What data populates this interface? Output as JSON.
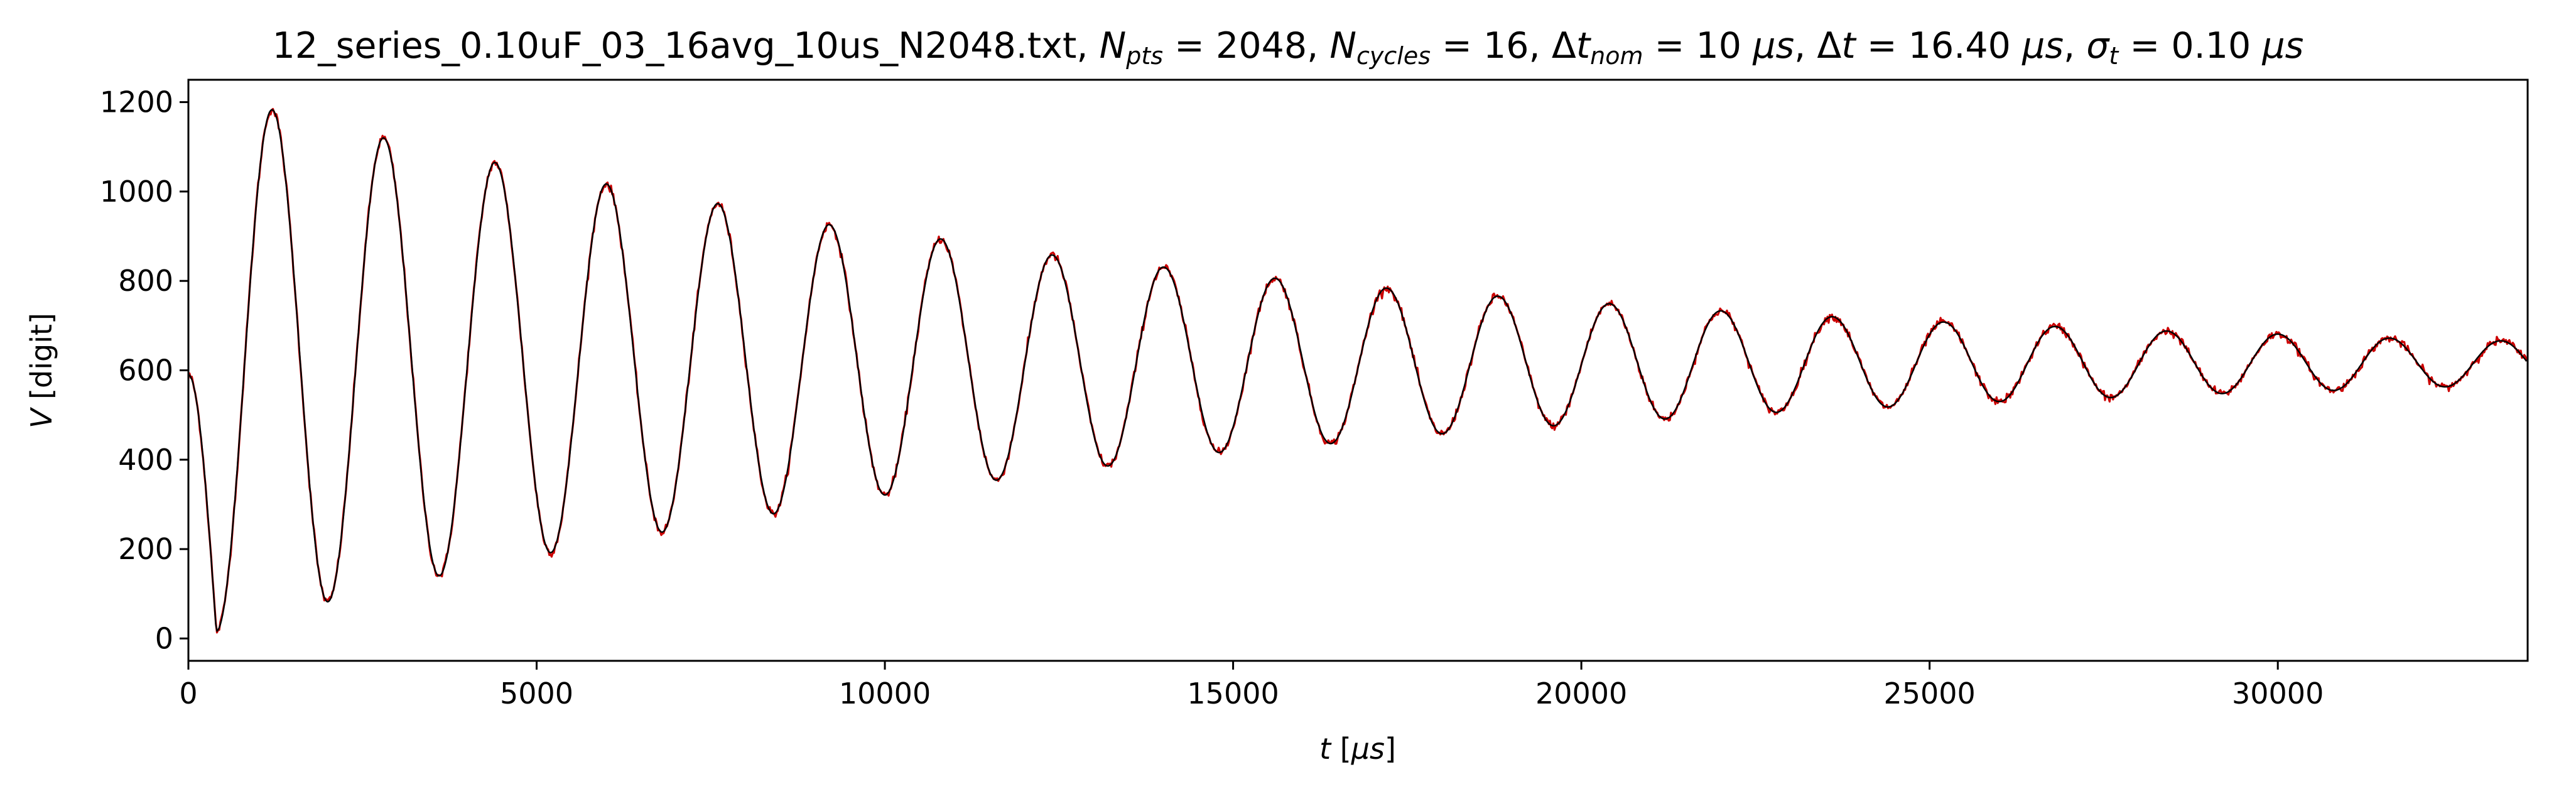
{
  "chart_data": {
    "type": "line",
    "title": {
      "file": "12_series_0.10uF_03_16avg_10us_N2048.txt,",
      "npts_sub": "pts",
      "npts_value": " = 2048,",
      "ncycles_sub": "cycles",
      "ncycles_value": " = 16,",
      "dtnom_sub": "nom",
      "dtnom_value": " = 10 ",
      "dtnom_unit": "μs",
      "dt_value": " = 16.40 ",
      "dt_unit": "μs",
      "sigma_sub": "t",
      "sigma_value": " = 0.10 ",
      "sigma_unit": "μs"
    },
    "xlabel": {
      "var": "t",
      "unit_open": " [",
      "unit": "μs",
      "unit_close": "]"
    },
    "ylabel": {
      "var": "V",
      "unit": " [digit]"
    },
    "xlim": [
      0,
      33587
    ],
    "ylim": [
      -50,
      1250
    ],
    "xticks": [
      0,
      5000,
      10000,
      15000,
      20000,
      25000,
      30000
    ],
    "yticks": [
      0,
      200,
      400,
      600,
      800,
      1000,
      1200
    ],
    "grid": false,
    "n_points": 2048,
    "dt": 16.4,
    "series": [
      {
        "role": "measured",
        "color": "#cc0000"
      },
      {
        "role": "fit",
        "color": "#000000"
      }
    ],
    "signal": {
      "start_value": 590,
      "offset": 616,
      "envelope_amplitudes": [
        {
          "x": 400,
          "value": 600
        },
        {
          "x": 1200,
          "value": 567
        },
        {
          "x": 2000,
          "value": 534
        },
        {
          "x": 2800,
          "value": 504
        },
        {
          "x": 3600,
          "value": 476
        },
        {
          "x": 4400,
          "value": 449
        },
        {
          "x": 5200,
          "value": 424
        },
        {
          "x": 6000,
          "value": 401
        },
        {
          "x": 6800,
          "value": 378
        },
        {
          "x": 7600,
          "value": 357
        },
        {
          "x": 8400,
          "value": 337
        },
        {
          "x": 9200,
          "value": 310
        },
        {
          "x": 10000,
          "value": 295
        },
        {
          "x": 10800,
          "value": 278
        },
        {
          "x": 11600,
          "value": 262
        },
        {
          "x": 12400,
          "value": 242
        },
        {
          "x": 13200,
          "value": 230
        },
        {
          "x": 14000,
          "value": 215
        },
        {
          "x": 14800,
          "value": 200
        },
        {
          "x": 15600,
          "value": 190
        },
        {
          "x": 16400,
          "value": 180
        },
        {
          "x": 17200,
          "value": 168
        },
        {
          "x": 18000,
          "value": 158
        },
        {
          "x": 18800,
          "value": 150
        },
        {
          "x": 19600,
          "value": 140
        },
        {
          "x": 20400,
          "value": 133
        },
        {
          "x": 21200,
          "value": 125
        },
        {
          "x": 22000,
          "value": 117
        },
        {
          "x": 22800,
          "value": 110
        },
        {
          "x": 23600,
          "value": 104
        },
        {
          "x": 24400,
          "value": 98
        },
        {
          "x": 25200,
          "value": 92
        },
        {
          "x": 26000,
          "value": 86
        },
        {
          "x": 26800,
          "value": 82
        },
        {
          "x": 27600,
          "value": 77
        },
        {
          "x": 28400,
          "value": 72
        },
        {
          "x": 29200,
          "value": 68
        },
        {
          "x": 30000,
          "value": 65
        },
        {
          "x": 30800,
          "value": 61
        },
        {
          "x": 31600,
          "value": 56
        },
        {
          "x": 32400,
          "value": 53
        },
        {
          "x": 33200,
          "value": 50
        }
      ]
    }
  }
}
